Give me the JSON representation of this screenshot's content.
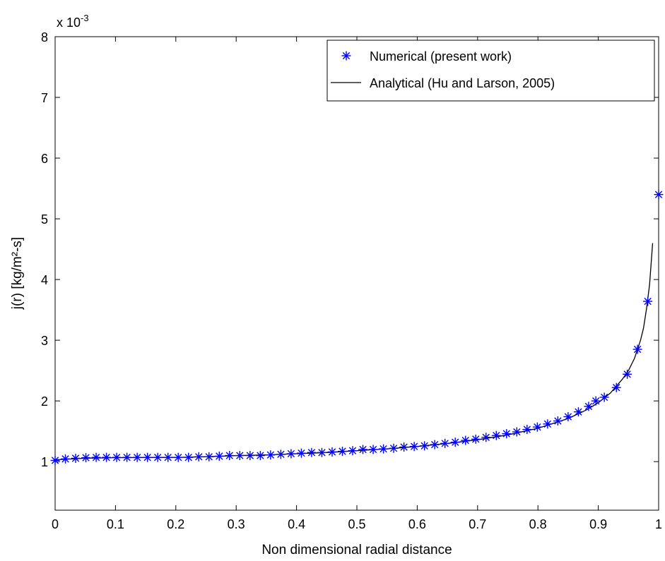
{
  "chart_data": {
    "type": "line",
    "xlabel": "Non dimensional radial distance",
    "ylabel": "j(r) [kg/m²-s]",
    "y_exponent_label": "x 10",
    "y_exponent_power": "-3",
    "xlim": [
      0,
      1
    ],
    "ylim": [
      0.0002,
      0.008
    ],
    "x_ticks": [
      "0",
      "0.1",
      "0.2",
      "0.3",
      "0.4",
      "0.5",
      "0.6",
      "0.7",
      "0.8",
      "0.9",
      "1"
    ],
    "y_ticks": [
      "1",
      "2",
      "3",
      "4",
      "5",
      "6",
      "7",
      "8"
    ],
    "grid": false,
    "legend_position": "top-right",
    "series": [
      {
        "name": "Numerical (present work)",
        "style": "markers",
        "marker": "asterisk",
        "color": "#0000ff",
        "x": [
          0,
          0.017,
          0.034,
          0.051,
          0.068,
          0.085,
          0.102,
          0.119,
          0.136,
          0.153,
          0.17,
          0.187,
          0.204,
          0.221,
          0.238,
          0.255,
          0.272,
          0.289,
          0.306,
          0.323,
          0.34,
          0.357,
          0.374,
          0.391,
          0.408,
          0.425,
          0.442,
          0.459,
          0.476,
          0.493,
          0.51,
          0.527,
          0.544,
          0.561,
          0.578,
          0.595,
          0.612,
          0.629,
          0.646,
          0.663,
          0.68,
          0.697,
          0.714,
          0.731,
          0.748,
          0.765,
          0.782,
          0.799,
          0.816,
          0.833,
          0.85,
          0.867,
          0.884,
          0.896,
          0.91,
          0.93,
          0.948,
          0.965,
          0.982,
          1.0
        ],
        "y": [
          0.00102,
          0.001045,
          0.001055,
          0.001065,
          0.00107,
          0.00107,
          0.00107,
          0.00107,
          0.00107,
          0.00107,
          0.00107,
          0.00107,
          0.00107,
          0.00107,
          0.00108,
          0.00108,
          0.00109,
          0.0011,
          0.0011,
          0.0011,
          0.0011,
          0.00111,
          0.00112,
          0.00113,
          0.00114,
          0.00115,
          0.00115,
          0.00116,
          0.00117,
          0.00118,
          0.0012,
          0.0012,
          0.00121,
          0.00122,
          0.00124,
          0.00125,
          0.00126,
          0.00128,
          0.0013,
          0.00132,
          0.00135,
          0.00137,
          0.0014,
          0.00143,
          0.00146,
          0.00149,
          0.00153,
          0.00157,
          0.00162,
          0.00167,
          0.00174,
          0.00182,
          0.00191,
          0.002,
          0.00206,
          0.00222,
          0.00244,
          0.00285,
          0.00364,
          0.0054
        ]
      },
      {
        "name": "Analytical (Hu and Larson, 2005)",
        "style": "line",
        "color": "#000000",
        "x": [
          0,
          0.05,
          0.1,
          0.15,
          0.2,
          0.25,
          0.3,
          0.35,
          0.4,
          0.45,
          0.5,
          0.55,
          0.6,
          0.65,
          0.7,
          0.75,
          0.8,
          0.85,
          0.88,
          0.9,
          0.92,
          0.94,
          0.95,
          0.96,
          0.97,
          0.975,
          0.98,
          0.985,
          0.99
        ],
        "y": [
          0.00103,
          0.001055,
          0.001065,
          0.001068,
          0.00107,
          0.00108,
          0.0011,
          0.00111,
          0.00113,
          0.00115,
          0.00118,
          0.00121,
          0.00125,
          0.0013,
          0.00136,
          0.00144,
          0.00155,
          0.00171,
          0.00185,
          0.00197,
          0.00213,
          0.00236,
          0.0025,
          0.0027,
          0.003,
          0.0032,
          0.00352,
          0.00392,
          0.0046
        ]
      }
    ]
  }
}
